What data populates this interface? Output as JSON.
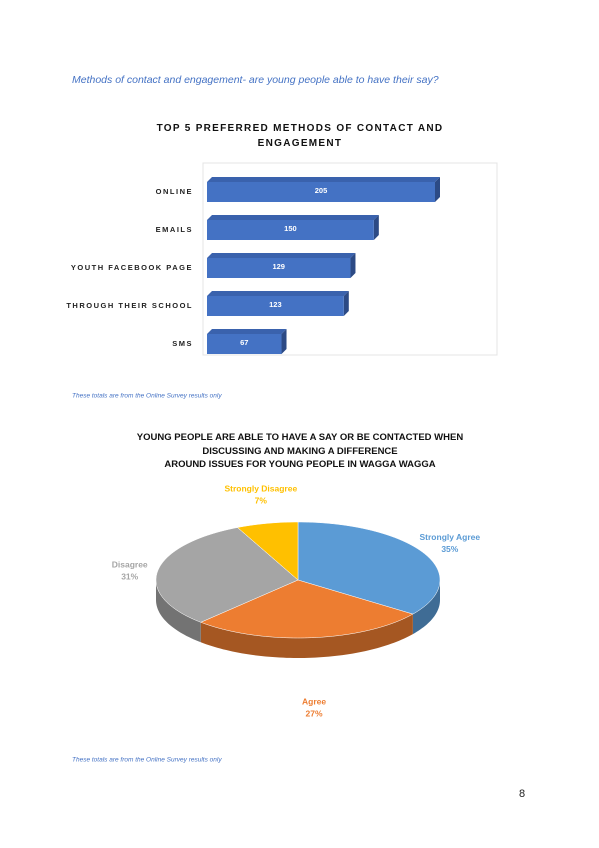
{
  "heading": "Methods of contact and engagement- are young people able to have their say?",
  "chart_data": [
    {
      "type": "hbar3d",
      "title": "TOP 5 PREFERRED METHODS OF CONTACT AND\nENGAGEMENT",
      "categories": [
        "ONLINE",
        "EMAILS",
        "YOUTH FACEBOOK PAGE",
        "THROUGH THEIR SCHOOL",
        "SMS"
      ],
      "values": [
        205,
        150,
        129,
        123,
        67
      ],
      "color": "#4472c4"
    },
    {
      "type": "pie3d",
      "title": "YOUNG PEOPLE ARE ABLE TO HAVE A SAY OR BE CONTACTED WHEN\nDISCUSSING AND MAKING A DIFFERENCE\nAROUND ISSUES FOR YOUNG PEOPLE IN WAGGA WAGGA",
      "categories": [
        "Strongly Agree",
        "Agree",
        "Disagree",
        "Strongly Disagree"
      ],
      "values": [
        35,
        27,
        31,
        7
      ],
      "value_labels": [
        "35%",
        "27%",
        "31%",
        "7%"
      ],
      "colors": [
        "#5b9bd5",
        "#ed7d31",
        "#a5a5a5",
        "#ffc000"
      ]
    }
  ],
  "notes": [
    "These totals are from the Online Survey results only",
    "These totals are from the Online Survey results only"
  ],
  "page_number": "8"
}
